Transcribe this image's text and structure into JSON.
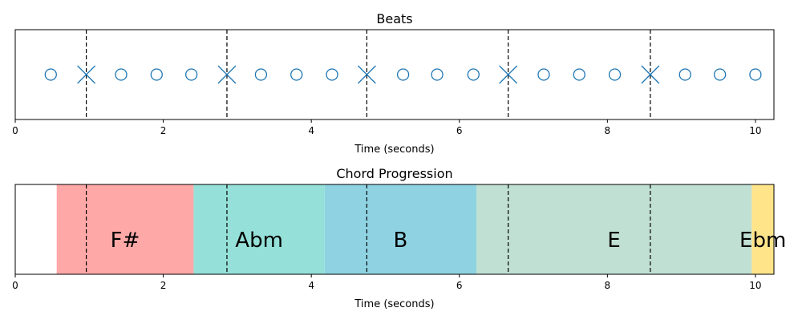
{
  "chart_data": [
    {
      "type": "scatter",
      "title": "Beats",
      "xlabel": "Time (seconds)",
      "ylabel": "",
      "xlim": [
        0,
        10.25
      ],
      "xticks": [
        "0",
        "2",
        "4",
        "6",
        "8",
        "10"
      ],
      "marker_color": "#1f77b4",
      "beats": [
        0.48,
        0.96,
        1.43,
        1.91,
        2.38,
        2.86,
        3.32,
        3.8,
        4.28,
        4.75,
        5.24,
        5.7,
        6.19,
        6.66,
        7.14,
        7.62,
        8.1,
        8.58,
        9.05,
        9.52,
        10.0
      ],
      "downbeats": [
        0.96,
        2.86,
        4.75,
        6.66,
        8.58
      ]
    },
    {
      "type": "timeline",
      "title": "Chord Progression",
      "xlabel": "Time (seconds)",
      "ylabel": "",
      "xlim": [
        0,
        10.25
      ],
      "xticks": [
        "0",
        "2",
        "4",
        "6",
        "8",
        "10"
      ],
      "segments": [
        {
          "label": "F#",
          "start": 0.56,
          "end": 2.41,
          "color": "#ffa8a8"
        },
        {
          "label": "Abm",
          "start": 2.41,
          "end": 4.18,
          "color": "#95e1d9"
        },
        {
          "label": "B",
          "start": 4.18,
          "end": 6.23,
          "color": "#8fd3e2"
        },
        {
          "label": "E",
          "start": 6.23,
          "end": 9.95,
          "color": "#c0e0d3"
        },
        {
          "label": "Ebm",
          "start": 9.95,
          "end": 10.25,
          "color": "#ffe48a"
        }
      ],
      "downbeats": [
        0.96,
        2.86,
        4.75,
        6.66,
        8.58
      ]
    }
  ]
}
